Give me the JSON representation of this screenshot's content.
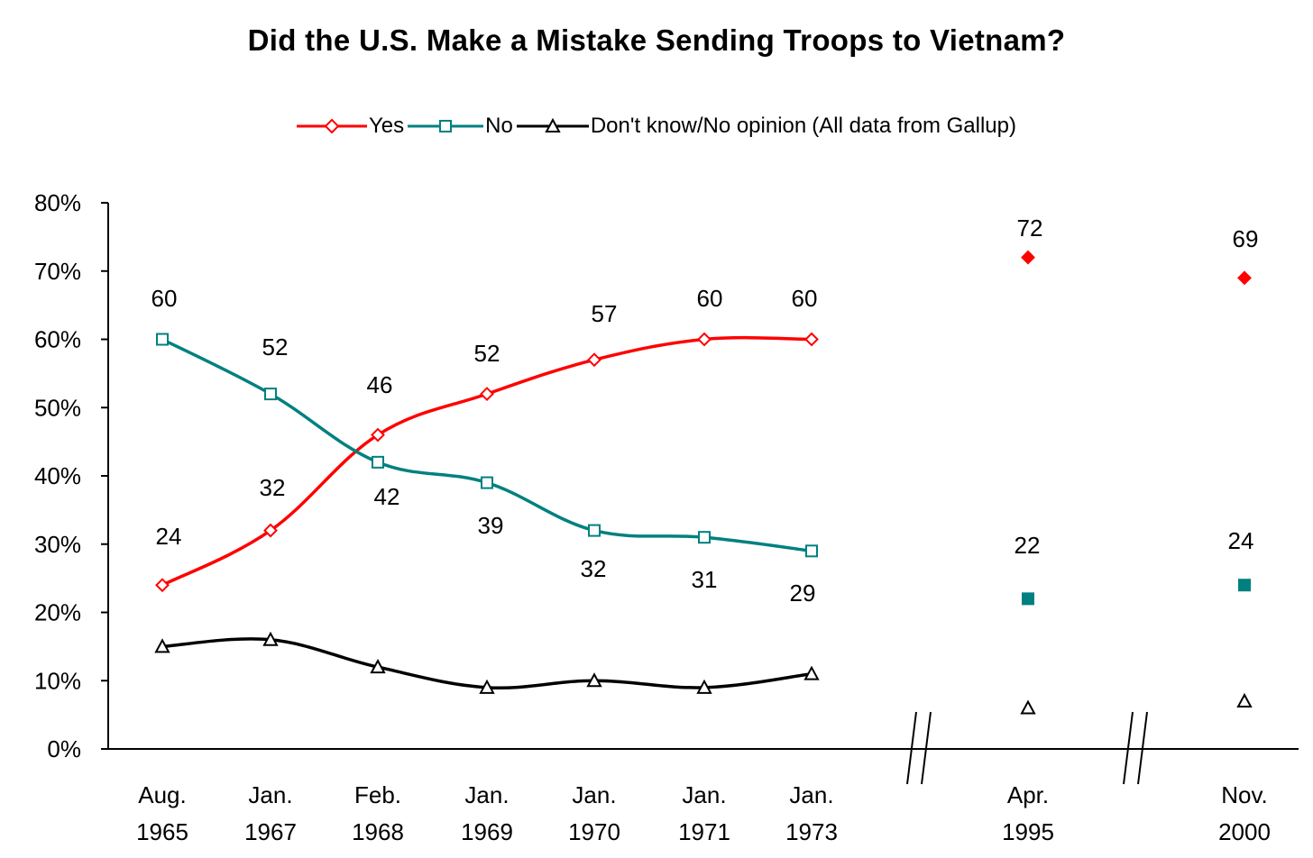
{
  "chart_data": {
    "type": "line",
    "title": "Did the U.S. Make a Mistake Sending Troops to Vietnam?",
    "legend_note": "(All data from Gallup)",
    "legend_position": "top-center",
    "y_ticks": [
      "0%",
      "10%",
      "20%",
      "30%",
      "40%",
      "50%",
      "60%",
      "70%",
      "80%"
    ],
    "ylim": [
      0,
      80
    ],
    "categories": [
      {
        "month": "Aug.",
        "year": "1965"
      },
      {
        "month": "Jan.",
        "year": "1967"
      },
      {
        "month": "Feb.",
        "year": "1968"
      },
      {
        "month": "Jan.",
        "year": "1969"
      },
      {
        "month": "Jan.",
        "year": "1970"
      },
      {
        "month": "Jan.",
        "year": "1971"
      },
      {
        "month": "Jan.",
        "year": "1973"
      },
      {
        "month": "Apr.",
        "year": "1995"
      },
      {
        "month": "Nov.",
        "year": "2000"
      }
    ],
    "connected_count": 7,
    "axis_breaks": [
      "//",
      "//"
    ],
    "series": [
      {
        "name": "Yes",
        "color": "#ff0000",
        "marker": "diamond",
        "values": [
          24,
          32,
          46,
          52,
          57,
          60,
          60,
          72,
          69
        ],
        "labels": [
          "24",
          "32",
          "46",
          "52",
          "57",
          "60",
          "60",
          "72",
          "69"
        ]
      },
      {
        "name": "No",
        "color": "#008080",
        "marker": "square",
        "values": [
          60,
          52,
          42,
          39,
          32,
          31,
          29,
          22,
          24
        ],
        "labels": [
          "60",
          "52",
          "42",
          "39",
          "32",
          "31",
          "29",
          "22",
          "24"
        ]
      },
      {
        "name": "Don't know/No opinion",
        "color": "#000000",
        "marker": "triangle",
        "values": [
          15,
          16,
          12,
          9,
          10,
          9,
          11,
          6,
          7
        ],
        "labels": []
      }
    ]
  }
}
